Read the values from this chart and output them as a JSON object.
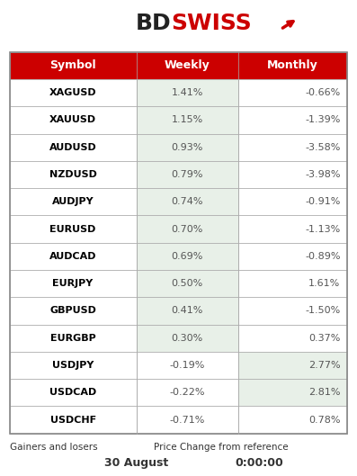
{
  "header": [
    "Symbol",
    "Weekly",
    "Monthly"
  ],
  "rows": [
    [
      "XAGUSD",
      "1.41%",
      "-0.66%"
    ],
    [
      "XAUUSD",
      "1.15%",
      "-1.39%"
    ],
    [
      "AUDUSD",
      "0.93%",
      "-3.58%"
    ],
    [
      "NZDUSD",
      "0.79%",
      "-3.98%"
    ],
    [
      "AUDJPY",
      "0.74%",
      "-0.91%"
    ],
    [
      "EURUSD",
      "0.70%",
      "-1.13%"
    ],
    [
      "AUDCAD",
      "0.69%",
      "-0.89%"
    ],
    [
      "EURJPY",
      "0.50%",
      "1.61%"
    ],
    [
      "GBPUSD",
      "0.41%",
      "-1.50%"
    ],
    [
      "EURGBP",
      "0.30%",
      "0.37%"
    ],
    [
      "USDJPY",
      "-0.19%",
      "2.77%"
    ],
    [
      "USDCAD",
      "-0.22%",
      "2.81%"
    ],
    [
      "USDCHF",
      "-0.71%",
      "0.78%"
    ]
  ],
  "weekly_bg": [
    "green",
    "green",
    "green",
    "green",
    "green",
    "green",
    "green",
    "green",
    "green",
    "green",
    "white",
    "white",
    "white"
  ],
  "monthly_bg": [
    "white",
    "white",
    "white",
    "white",
    "white",
    "white",
    "white",
    "white",
    "white",
    "white",
    "green",
    "green",
    "white"
  ],
  "header_bg": "#cc0000",
  "header_text_color": "#ffffff",
  "symbol_text_color": "#000000",
  "value_text_color": "#555555",
  "green_cell": "#e8f0e8",
  "white_cell": "#ffffff",
  "border_color": "#aaaaaa",
  "footer_left": "Gainers and losers",
  "footer_center": "Price Change from reference",
  "footer_date": "30 August",
  "footer_time": "0:00:00",
  "outer_border_color": "#888888"
}
